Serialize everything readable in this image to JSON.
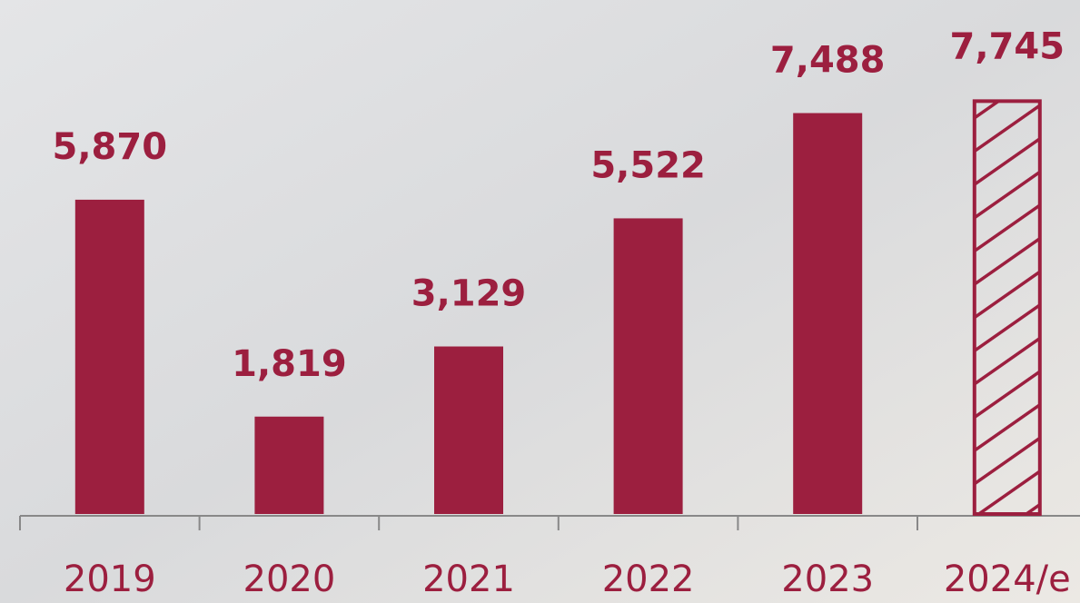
{
  "chart_data": {
    "type": "bar",
    "categories": [
      "2019",
      "2020",
      "2021",
      "2022",
      "2023",
      "2024/e"
    ],
    "values": [
      5870,
      1819,
      3129,
      5522,
      7488,
      7745
    ],
    "value_labels": [
      "5,870",
      "1,819",
      "3,129",
      "5,522",
      "7,488",
      "7,745"
    ],
    "patterns": [
      "solid",
      "solid",
      "solid",
      "solid",
      "solid",
      "hatch"
    ],
    "color": "#9c1f3f",
    "ylim": [
      0,
      9600
    ]
  }
}
